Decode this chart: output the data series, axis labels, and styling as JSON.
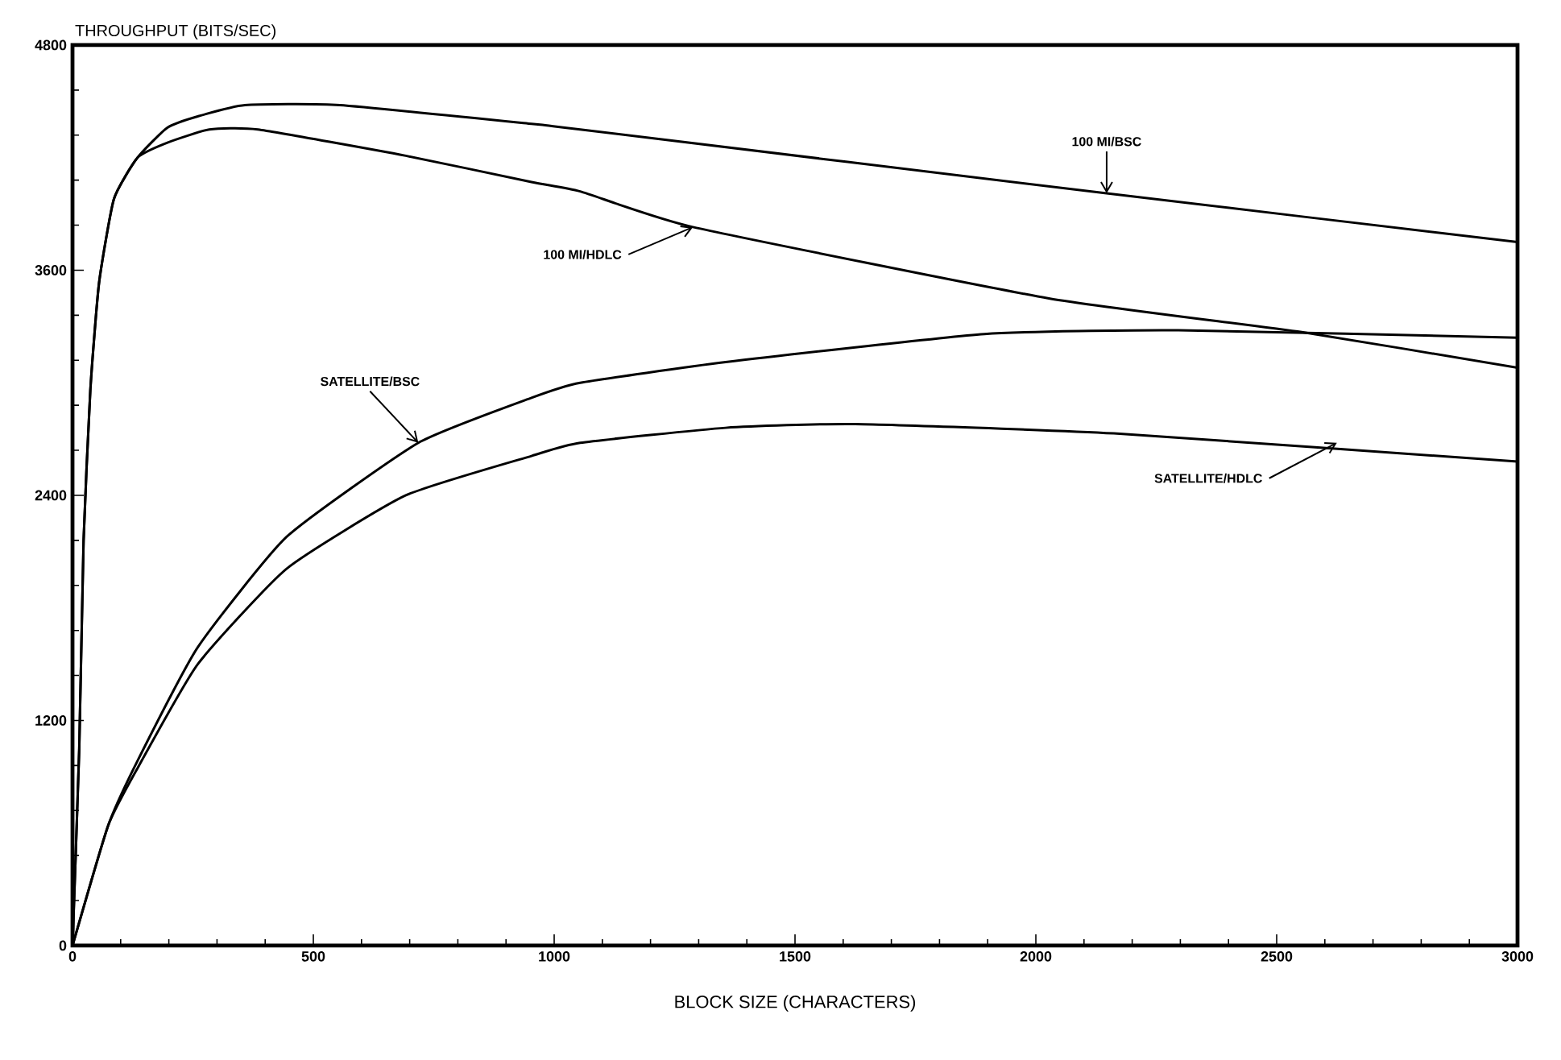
{
  "chart_data": {
    "type": "line",
    "xlabel": "BLOCK SIZE (CHARACTERS)",
    "ylabel": "THROUGHPUT (BITS/SEC)",
    "xlim": [
      0,
      3000
    ],
    "ylim": [
      0,
      4800
    ],
    "xticks": [
      0,
      500,
      1000,
      1500,
      2000,
      2500,
      3000
    ],
    "yticks": [
      0,
      1200,
      2400,
      3600,
      4800
    ],
    "grid": false,
    "series": [
      {
        "color": "#000000",
        "x": [
          0,
          14,
          23,
          37,
          55,
          86,
          135,
          197,
          260,
          358,
          555,
          953,
          1054,
          2147,
          3000
        ],
        "values": [
          0,
          1050,
          2160,
          2960,
          3530,
          3980,
          4200,
          4360,
          4420,
          4480,
          4480,
          4380,
          4350,
          4010,
          3750
        ]
      },
      {
        "color": "#000000",
        "x": [
          0,
          14,
          23,
          37,
          55,
          86,
          135,
          197,
          284,
          385,
          692,
          953,
          1054,
          1288,
          2027,
          2552,
          3000
        ],
        "values": [
          0,
          1050,
          2160,
          2960,
          3530,
          3980,
          4200,
          4280,
          4350,
          4350,
          4210,
          4070,
          4020,
          3830,
          3450,
          3270,
          3080
        ]
      },
      {
        "color": "#000000",
        "x": [
          0,
          74,
          136,
          260,
          445,
          718,
          953,
          1054,
          1356,
          1893,
          2296,
          3000
        ],
        "values": [
          0,
          640,
          990,
          1590,
          2180,
          2680,
          2920,
          3000,
          3110,
          3260,
          3280,
          3240
        ]
      },
      {
        "color": "#000000",
        "x": [
          0,
          74,
          136,
          260,
          445,
          692,
          953,
          1054,
          1356,
          1625,
          2162,
          3000
        ],
        "values": [
          0,
          640,
          950,
          1500,
          2010,
          2400,
          2610,
          2680,
          2760,
          2780,
          2730,
          2580
        ]
      }
    ],
    "annotations": [
      {
        "text": "100 MI/BSC",
        "x": 2147,
        "y": 4010
      },
      {
        "text": "100 MI/HDLC",
        "x": 1288,
        "y": 3830
      },
      {
        "text": "SATELLITE/BSC",
        "x": 718,
        "y": 2680
      },
      {
        "text": "SATELLITE/HDLC",
        "x": 2625,
        "y": 2680
      }
    ]
  }
}
